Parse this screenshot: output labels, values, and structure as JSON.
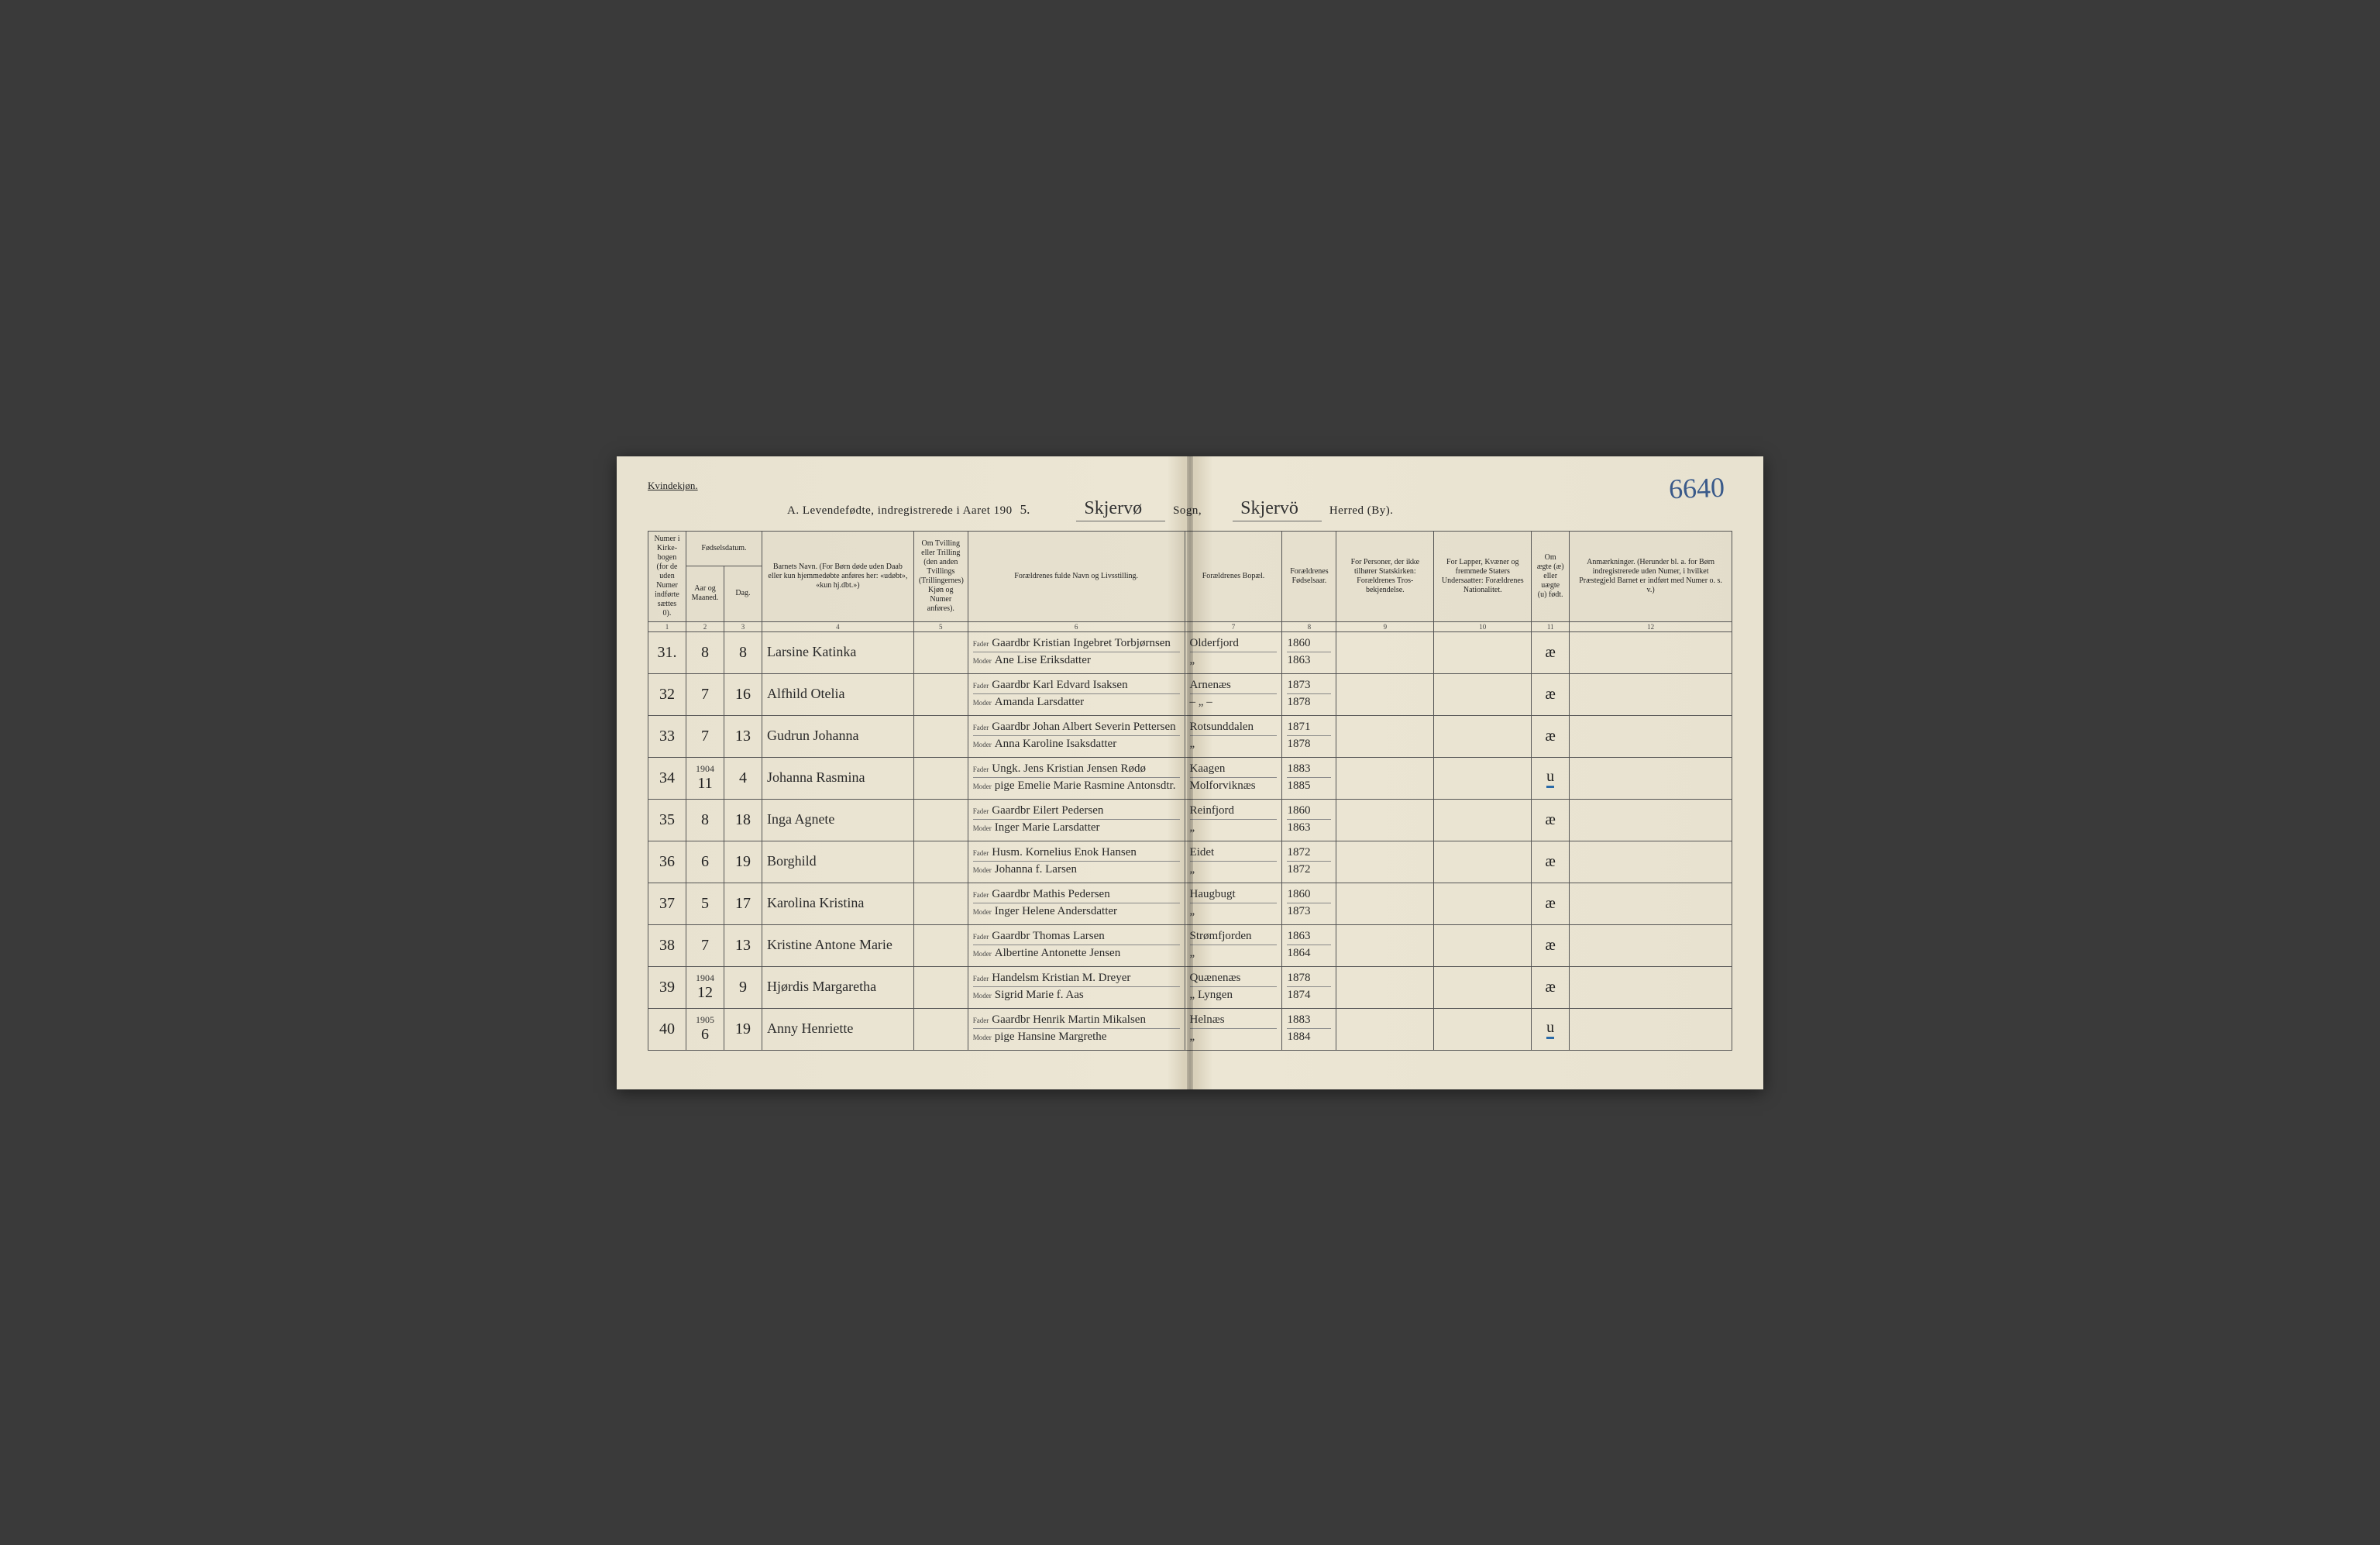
{
  "gender_heading": "Kvindekjøn.",
  "header": {
    "prefix": "A.  Levendefødte, indregistrerede i Aaret 190",
    "year_suffix": "5.",
    "sogn_value": "Skjervø",
    "sogn_label": "Sogn,",
    "herred_value": "Skjervö",
    "herred_label": "Herred (By)."
  },
  "page_number": "6640",
  "columns": {
    "c1": "Numer i Kirke­bogen (for de uden Numer indførte sættes 0).",
    "c2_group": "Fødselsdatum.",
    "c2": "Aar og Maaned.",
    "c3": "Dag.",
    "c4": "Barnets Navn.\n(For Børn døde uden Daab eller kun hjemmedøbte anføres her: «udøbt», «kun hj.dbt.»)",
    "c5": "Om Tvilling eller Trilling (den anden Tvillings (Trillingernes) Kjøn og Numer anføres).",
    "c6": "Forældrenes fulde Navn og Livsstilling.",
    "c7": "Forældrenes Bopæl.",
    "c8": "For­ældrenes Fødsels­aar.",
    "c9": "For Personer, der ikke tilhører Statskirken: Forældrenes Tros­bekjendelse.",
    "c10": "For Lapper, Kvæner og fremmede Staters Undersaatter: Forældrenes Nationalitet.",
    "c11": "Om ægte (æ) eller uægte (u) født.",
    "c12": "Anmærkninger.\n(Herunder bl. a. for Børn indregistrerede uden Numer, i hvilket Præstegjeld Barnet er indført med Numer o. s. v.)"
  },
  "role_fader": "Fader",
  "role_moder": "Moder",
  "rows": [
    {
      "num": "31.",
      "month_sup": "",
      "month": "8",
      "day": "8",
      "child": "Larsine Katinka",
      "father": "Gaardbr Kristian Ingebret Torbjørnsen",
      "mother": "Ane Lise Eriksdatter",
      "residence_f": "Olderfjord",
      "residence_m": "„",
      "fyear": "1860",
      "myear": "1863",
      "legit": "æ",
      "legit_underlined": false
    },
    {
      "num": "32",
      "month_sup": "",
      "month": "7",
      "day": "16",
      "child": "Alfhild Otelia",
      "father": "Gaardbr Karl Edvard Isaksen",
      "mother": "Amanda Larsdatter",
      "residence_f": "Arnenæs",
      "residence_m": "– „ –",
      "fyear": "1873",
      "myear": "1878",
      "legit": "æ",
      "legit_underlined": false
    },
    {
      "num": "33",
      "month_sup": "",
      "month": "7",
      "day": "13",
      "child": "Gudrun Johanna",
      "father": "Gaardbr Johan Albert Severin Pettersen",
      "mother": "Anna Karoline Isaksdatter",
      "residence_f": "Rotsunddalen",
      "residence_m": "„",
      "fyear": "1871",
      "myear": "1878",
      "legit": "æ",
      "legit_underlined": false
    },
    {
      "num": "34",
      "month_sup": "1904",
      "month": "11",
      "day": "4",
      "child": "Johanna Rasmina",
      "father": "Ungk. Jens Kristian Jensen Rødø",
      "mother": "pige Emelie Marie Rasmine Antonsdtr.",
      "residence_f": "Kaagen",
      "residence_m": "Molforviknæs",
      "fyear": "1883",
      "myear": "1885",
      "legit": "u",
      "legit_underlined": true
    },
    {
      "num": "35",
      "month_sup": "",
      "month": "8",
      "day": "18",
      "child": "Inga Agnete",
      "father": "Gaardbr Eilert Pedersen",
      "mother": "Inger Marie Larsdatter",
      "residence_f": "Reinfjord",
      "residence_m": "„",
      "fyear": "1860",
      "myear": "1863",
      "legit": "æ",
      "legit_underlined": false
    },
    {
      "num": "36",
      "month_sup": "",
      "month": "6",
      "day": "19",
      "child": "Borghild",
      "father": "Husm. Kornelius Enok Hansen",
      "mother": "Johanna f. Larsen",
      "residence_f": "Eidet",
      "residence_m": "„",
      "fyear": "1872",
      "myear": "1872",
      "legit": "æ",
      "legit_underlined": false
    },
    {
      "num": "37",
      "month_sup": "",
      "month": "5",
      "day": "17",
      "child": "Karolina Kristina",
      "father": "Gaardbr Mathis Pedersen",
      "mother": "Inger Helene Andersdatter",
      "residence_f": "Haugbugt",
      "residence_m": "„",
      "fyear": "1860",
      "myear": "1873",
      "legit": "æ",
      "legit_underlined": false
    },
    {
      "num": "38",
      "month_sup": "",
      "month": "7",
      "day": "13",
      "child": "Kristine Antone Marie",
      "father": "Gaardbr Thomas Larsen",
      "mother": "Albertine Antonette Jensen",
      "residence_f": "Strømfjorden",
      "residence_m": "„",
      "fyear": "1863",
      "myear": "1864",
      "legit": "æ",
      "legit_underlined": false
    },
    {
      "num": "39",
      "month_sup": "1904",
      "month": "12",
      "day": "9",
      "child": "Hjørdis Margaretha",
      "father": "Handelsm Kristian M. Dreyer",
      "mother": "Sigrid Marie f. Aas",
      "residence_f": "Quænenæs",
      "residence_m": "„ Lyngen",
      "fyear": "1878",
      "myear": "1874",
      "legit": "æ",
      "legit_underlined": false
    },
    {
      "num": "40",
      "month_sup": "1905",
      "month": "6",
      "day": "19",
      "child": "Anny Henriette",
      "father": "Gaardbr Henrik Martin Mikalsen",
      "mother": "pige Hansine Margrethe",
      "residence_f": "Helnæs",
      "residence_m": "„",
      "fyear": "1883",
      "myear": "1884",
      "legit": "u",
      "legit_underlined": true
    }
  ]
}
